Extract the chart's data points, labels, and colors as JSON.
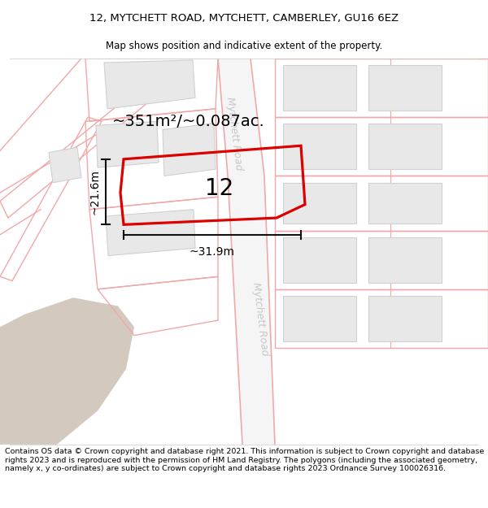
{
  "title_line1": "12, MYTCHETT ROAD, MYTCHETT, CAMBERLEY, GU16 6EZ",
  "title_line2": "Map shows position and indicative extent of the property.",
  "footer_text": "Contains OS data © Crown copyright and database right 2021. This information is subject to Crown copyright and database rights 2023 and is reproduced with the permission of HM Land Registry. The polygons (including the associated geometry, namely x, y co-ordinates) are subject to Crown copyright and database rights 2023 Ordnance Survey 100026316.",
  "area_label": "~351m²/~0.087ac.",
  "number_label": "12",
  "dim_width": "~31.9m",
  "dim_height": "~21.6m",
  "road_label_1": "Mytchett Road",
  "road_label_2": "Mytchett Road",
  "bg_color": "#ffffff",
  "map_bg": "#ffffff",
  "building_fill": "#e8e8e8",
  "building_edge": "#d0d0d0",
  "parcel_edge": "#f0a8a8",
  "road_fill": "#f0f0f0",
  "plot_border_color": "#dd0000",
  "tan_fill": "#d4c9be",
  "dim_color": "#111111",
  "road_label_color": "#c8c8c8",
  "title_fontsize": 9.5,
  "subtitle_fontsize": 8.5,
  "footer_fontsize": 6.8,
  "area_fontsize": 14,
  "number_fontsize": 20,
  "road_label_fontsize": 9
}
